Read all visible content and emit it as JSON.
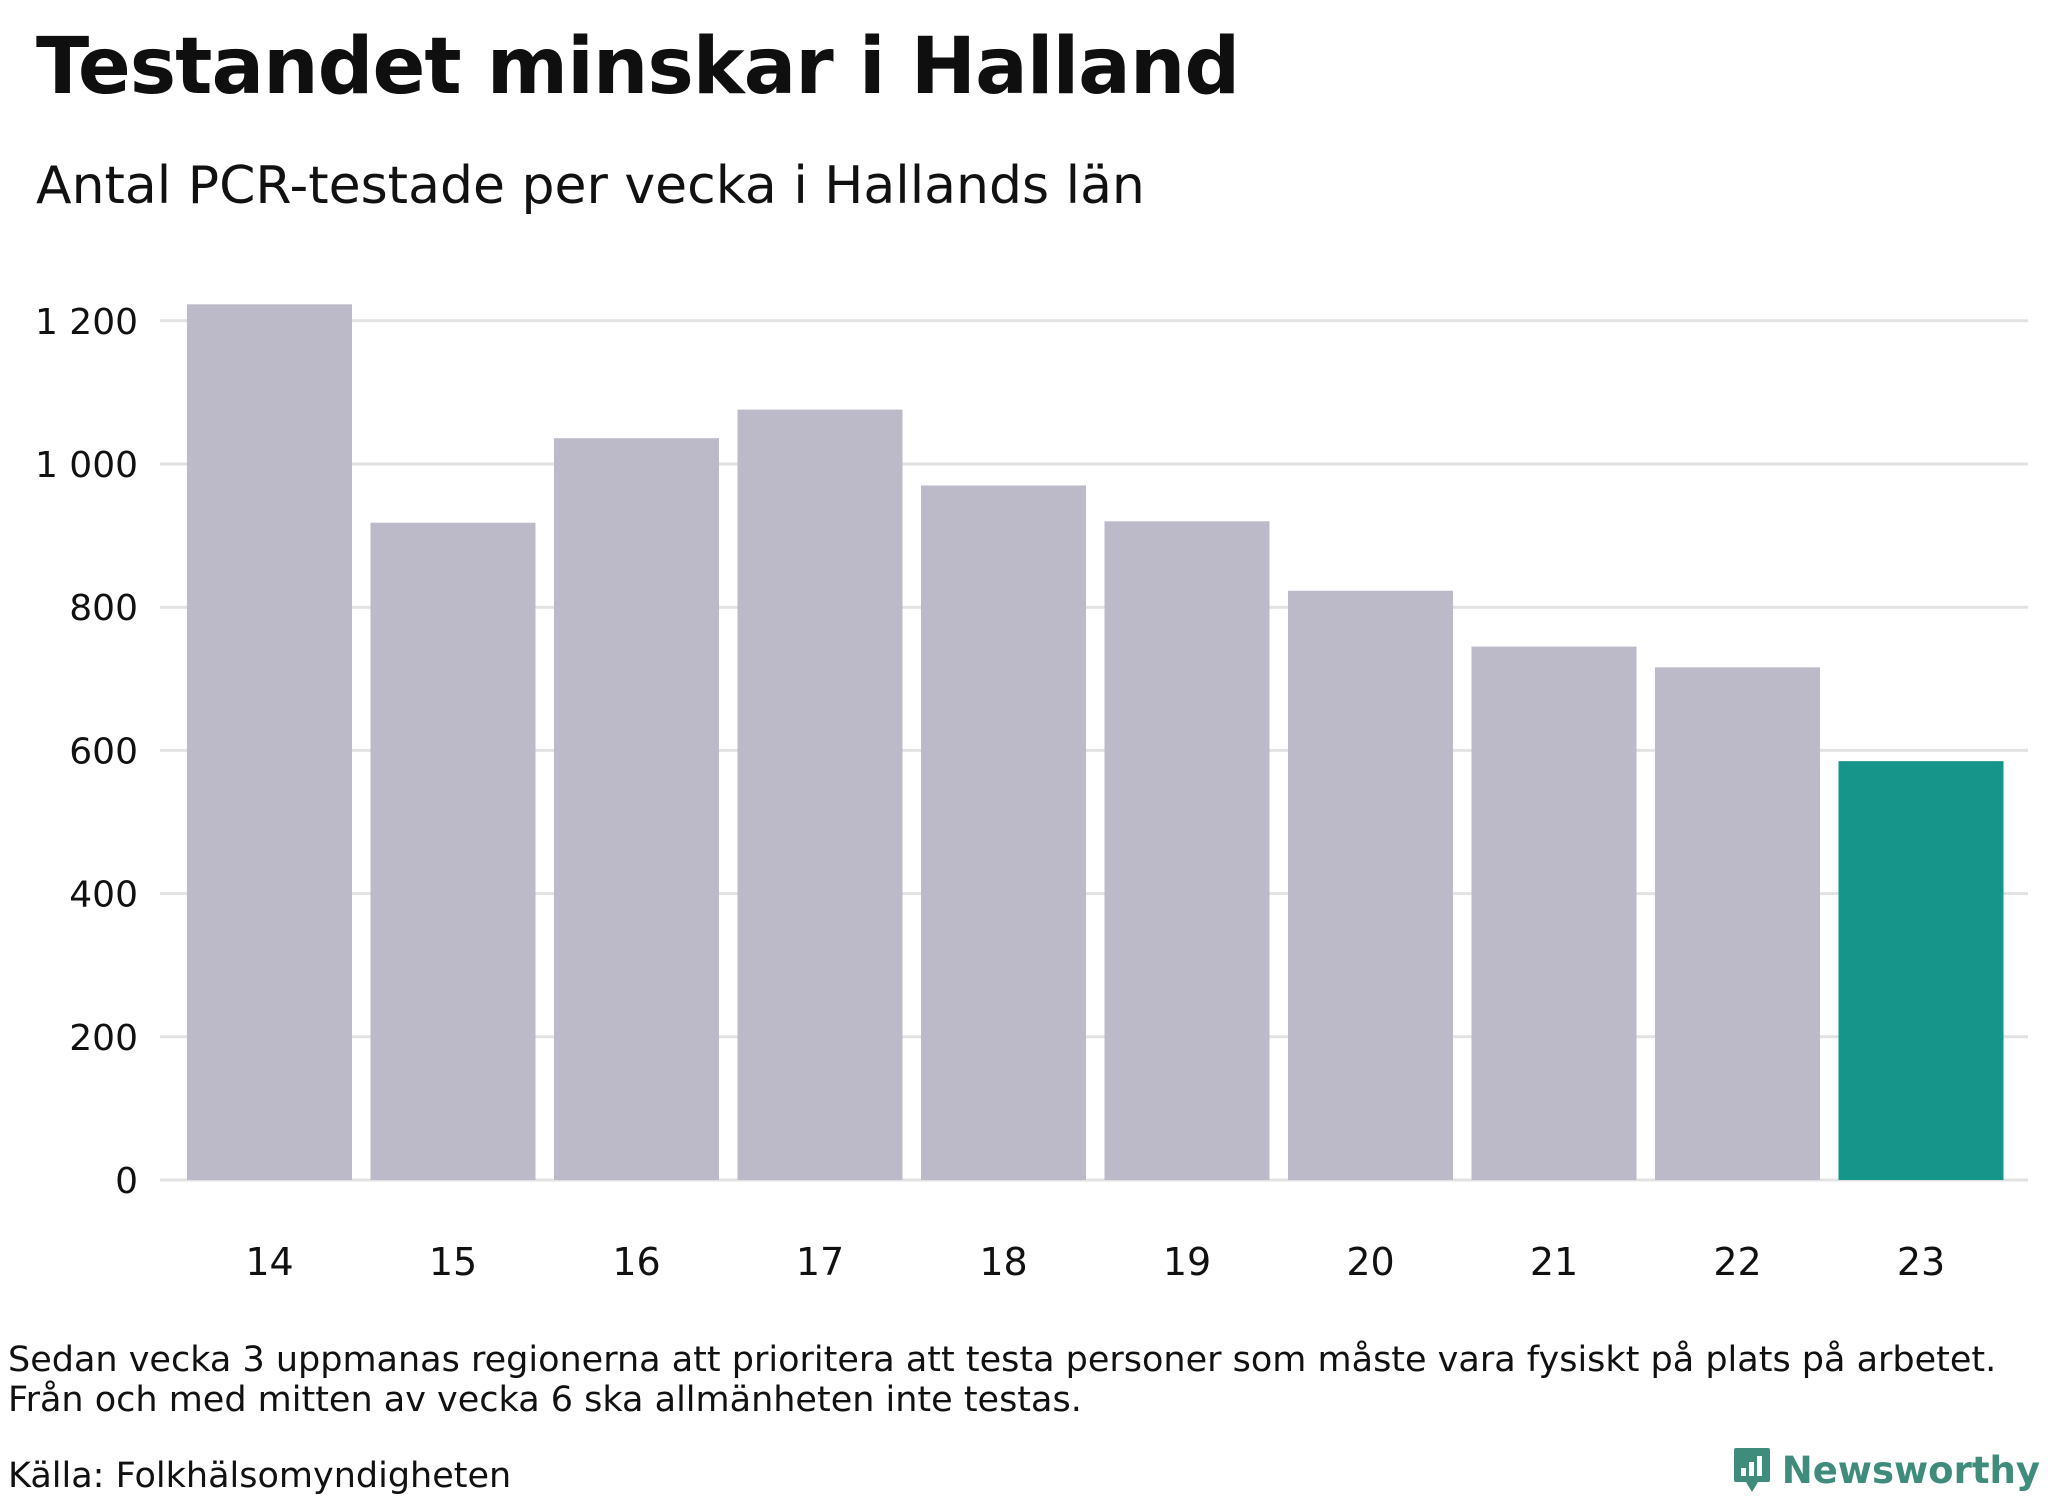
{
  "header": {
    "title": "Testandet minskar i Halland",
    "subtitle": "Antal PCR-testade per vecka i Hallands län"
  },
  "footer": {
    "note_line1": "Sedan vecka 3 uppmanas regionerna att prioritera att testa personer som måste vara fysiskt på plats på arbetet.",
    "note_line2": "Från och med mitten av vecka 6 ska allmänheten inte testas.",
    "source": "Källa: Folkhälsomyndigheten",
    "brand": "Newsworthy"
  },
  "colors": {
    "bar": "#bcbac8",
    "highlight": "#16958a",
    "grid": "#e2e2e2",
    "brand": "#3f8c7d"
  },
  "icons": {
    "brand_logo": "bar-chart-pin-icon"
  },
  "chart_data": {
    "type": "bar",
    "title": "Testandet minskar i Halland",
    "subtitle": "Antal PCR-testade per vecka i Hallands län",
    "xlabel": "",
    "ylabel": "",
    "categories": [
      "14",
      "15",
      "16",
      "17",
      "18",
      "19",
      "20",
      "21",
      "22",
      "23"
    ],
    "values": [
      1223,
      918,
      1036,
      1076,
      970,
      920,
      823,
      745,
      716,
      585
    ],
    "highlight_category": "23",
    "ylim": [
      0,
      1250
    ],
    "yticks": [
      0,
      200,
      400,
      600,
      800,
      1000,
      1200
    ],
    "ytick_labels": [
      "0",
      "200",
      "400",
      "600",
      "800",
      "1 000",
      "1 200"
    ],
    "grid": true,
    "legend": "none"
  }
}
